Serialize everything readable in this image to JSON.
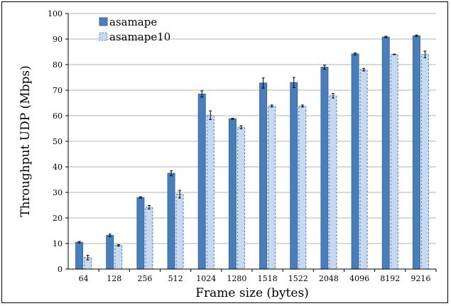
{
  "chart_data": {
    "type": "bar",
    "title": "",
    "xlabel": "Frame size (bytes)",
    "ylabel": "Throughput UDP (Mbps)",
    "ylim": [
      0,
      100
    ],
    "yticks": [
      0,
      10,
      20,
      30,
      40,
      50,
      60,
      70,
      80,
      90,
      100
    ],
    "grid": "horizontal",
    "legend_position": "top-left",
    "categories": [
      "64",
      "128",
      "256",
      "512",
      "1024",
      "1280",
      "1518",
      "1522",
      "2048",
      "4096",
      "8192",
      "9216"
    ],
    "series": [
      {
        "name": "asamape",
        "style": "solid",
        "color": "#4a7ebb",
        "edge_color": "#3a6aa5",
        "values": [
          10.5,
          13.2,
          28.0,
          37.5,
          68.5,
          58.8,
          72.8,
          73.0,
          79.0,
          84.2,
          90.8,
          91.3
        ],
        "errors": [
          0.3,
          0.5,
          0.3,
          1.0,
          1.2,
          0.2,
          2.0,
          2.0,
          0.8,
          0.4,
          0.3,
          0.3
        ]
      },
      {
        "name": "asamape10",
        "style": "dashed",
        "color": "#c6d9f1",
        "edge_color": "#4a7ebb",
        "values": [
          4.5,
          9.3,
          24.2,
          29.3,
          60.2,
          55.5,
          63.8,
          63.8,
          67.8,
          78.0,
          84.0,
          84.0
        ],
        "errors": [
          0.9,
          0.3,
          0.7,
          1.5,
          1.7,
          0.6,
          0.4,
          0.4,
          0.9,
          0.5,
          0.1,
          1.3
        ]
      }
    ]
  }
}
